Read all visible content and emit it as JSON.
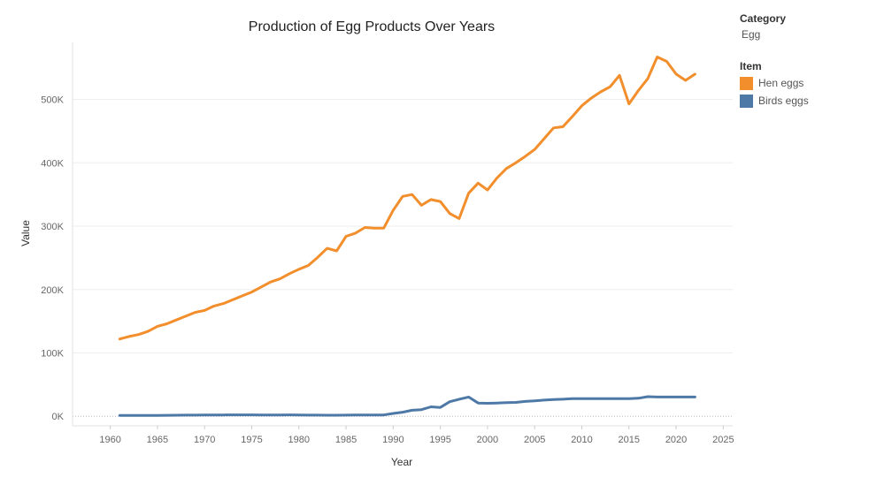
{
  "chart_data": {
    "type": "line",
    "title": "Production of Egg Products Over Years",
    "xlabel": "Year",
    "ylabel": "Value",
    "xlim": [
      1956,
      2026
    ],
    "ylim": [
      -15000,
      590000
    ],
    "x_ticks": [
      1960,
      1965,
      1970,
      1975,
      1980,
      1985,
      1990,
      1995,
      2000,
      2005,
      2010,
      2015,
      2020,
      2025
    ],
    "y_ticks": [
      {
        "value": 0,
        "label": "0K"
      },
      {
        "value": 100000,
        "label": "100K"
      },
      {
        "value": 200000,
        "label": "200K"
      },
      {
        "value": 300000,
        "label": "300K"
      },
      {
        "value": 400000,
        "label": "400K"
      },
      {
        "value": 500000,
        "label": "500K"
      }
    ],
    "grid": true,
    "legend_position": "right",
    "series": [
      {
        "name": "Hen eggs",
        "color": "#f28e2b",
        "x": [
          1961,
          1962,
          1963,
          1964,
          1965,
          1966,
          1967,
          1968,
          1969,
          1970,
          1971,
          1972,
          1973,
          1974,
          1975,
          1976,
          1977,
          1978,
          1979,
          1980,
          1981,
          1982,
          1983,
          1984,
          1985,
          1986,
          1987,
          1988,
          1989,
          1990,
          1991,
          1992,
          1993,
          1994,
          1995,
          1996,
          1997,
          1998,
          1999,
          2000,
          2001,
          2002,
          2003,
          2004,
          2005,
          2006,
          2007,
          2008,
          2009,
          2010,
          2011,
          2012,
          2013,
          2014,
          2015,
          2016,
          2017,
          2018,
          2019,
          2020,
          2021,
          2022
        ],
        "values": [
          122000,
          126000,
          129000,
          134000,
          142000,
          146000,
          152000,
          158000,
          164000,
          167000,
          174000,
          178000,
          184000,
          190000,
          196000,
          204000,
          212000,
          217000,
          225000,
          232000,
          238000,
          251000,
          265000,
          261000,
          284000,
          289000,
          298000,
          297000,
          297000,
          325000,
          347000,
          350000,
          333000,
          342000,
          339000,
          320000,
          312000,
          352000,
          368000,
          357000,
          376000,
          391000,
          400000,
          410000,
          421000,
          438000,
          455000,
          457000,
          473000,
          490000,
          502000,
          512000,
          520000,
          538000,
          493000,
          514000,
          533000,
          567000,
          560000,
          540000,
          530000,
          540000
        ]
      },
      {
        "name": "Birds eggs",
        "color": "#4e79a7",
        "x": [
          1961,
          1962,
          1963,
          1964,
          1965,
          1966,
          1967,
          1968,
          1969,
          1970,
          1971,
          1972,
          1973,
          1974,
          1975,
          1976,
          1977,
          1978,
          1979,
          1980,
          1981,
          1982,
          1983,
          1984,
          1985,
          1986,
          1987,
          1988,
          1989,
          1990,
          1991,
          1992,
          1993,
          1994,
          1995,
          1996,
          1997,
          1998,
          1999,
          2000,
          2001,
          2002,
          2003,
          2004,
          2005,
          2006,
          2007,
          2008,
          2009,
          2010,
          2011,
          2012,
          2013,
          2014,
          2015,
          2016,
          2017,
          2018,
          2019,
          2020,
          2021,
          2022
        ],
        "values": [
          1500,
          1500,
          1500,
          1500,
          1500,
          1600,
          1700,
          1800,
          1900,
          2000,
          2100,
          2200,
          2300,
          2300,
          2300,
          2200,
          2200,
          2200,
          2300,
          2100,
          1900,
          1800,
          1700,
          1700,
          1900,
          2000,
          2000,
          2100,
          2200,
          4500,
          6500,
          9500,
          10500,
          15000,
          14000,
          23000,
          27000,
          30500,
          21000,
          20500,
          21000,
          21500,
          22000,
          23500,
          24500,
          25500,
          26500,
          27000,
          28000,
          28000,
          28000,
          28000,
          28000,
          28000,
          28000,
          28500,
          31000,
          30500,
          30500,
          30500,
          30500,
          30500
        ]
      }
    ]
  },
  "legend": {
    "category_heading": "Category",
    "category_value": "Egg",
    "item_heading": "Item",
    "items": [
      {
        "label": "Hen eggs",
        "color": "#f28e2b"
      },
      {
        "label": "Birds eggs",
        "color": "#4e79a7"
      }
    ]
  }
}
